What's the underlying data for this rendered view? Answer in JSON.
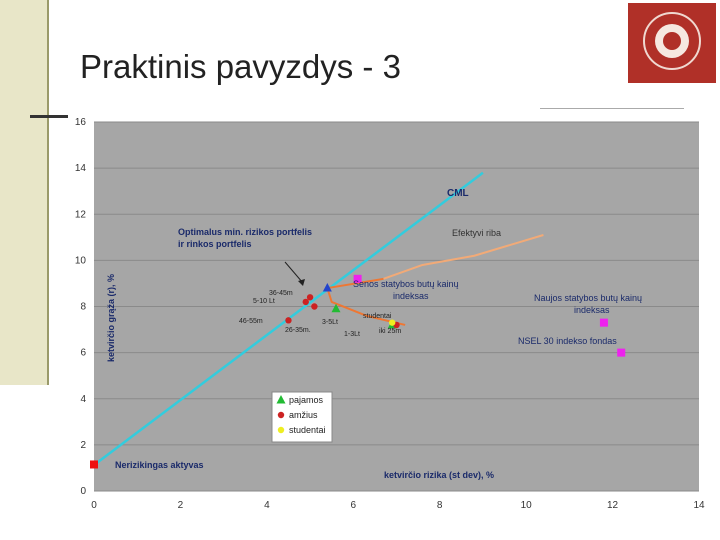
{
  "slide": {
    "title": "Praktinis pavyzdys - 3"
  },
  "chart_data": {
    "type": "scatter",
    "xlabel": "ketvirčio rizika (st dev), %",
    "ylabel": "ketvirčio grąža (r), %",
    "xlim": [
      0,
      14
    ],
    "ylim": [
      0,
      16
    ],
    "xticks": [
      "0",
      "2",
      "4",
      "6",
      "8",
      "10",
      "12",
      "14"
    ],
    "yticks": [
      "0",
      "2",
      "4",
      "6",
      "8",
      "10",
      "12",
      "14",
      "16"
    ],
    "grid": true,
    "legend_position": "bottom-left",
    "legend": [
      {
        "label": "pajamos",
        "marker": "triangle",
        "color": "#22bb33"
      },
      {
        "label": "amžius",
        "marker": "circle",
        "color": "#cc2222"
      },
      {
        "label": "studentai",
        "marker": "circle",
        "color": "#eeee22"
      }
    ],
    "lines": [
      {
        "name": "CML",
        "color": "#33ccdd",
        "points": [
          [
            0.05,
            1.2
          ],
          [
            9.0,
            13.8
          ]
        ]
      },
      {
        "name": "Efektyvi riba",
        "color": "#ee7733",
        "points": [
          [
            6.7,
            9.2
          ],
          [
            5.4,
            8.8
          ],
          [
            5.5,
            8.2
          ],
          [
            6.3,
            7.6
          ],
          [
            7.2,
            7.2
          ]
        ]
      },
      {
        "name": "Efektyvi riba (tęsinys)",
        "color": "#f2aa77",
        "points": [
          [
            6.7,
            9.2
          ],
          [
            7.6,
            9.8
          ],
          [
            8.8,
            10.2
          ],
          [
            10.4,
            11.1
          ]
        ]
      }
    ],
    "points": [
      {
        "label": "Nerizikingas aktyvas",
        "x": 0.0,
        "y": 1.15,
        "color": "#ee1111",
        "marker": "square"
      },
      {
        "label": "Senos statybos butų kainų indeksas",
        "x": 6.1,
        "y": 9.2,
        "color": "#ee22ee",
        "marker": "square"
      },
      {
        "label": "Naujos statybos butų kainų indeksas",
        "x": 11.8,
        "y": 7.3,
        "color": "#ee22ee",
        "marker": "square"
      },
      {
        "label": "NSEL 30 indekso fondas",
        "x": 12.2,
        "y": 6.0,
        "color": "#ee22ee",
        "marker": "square"
      },
      {
        "label": "Optimalus portfelis",
        "x": 5.4,
        "y": 8.8,
        "color": "#2244cc",
        "marker": "triangle"
      },
      {
        "label": "3-5Lt",
        "x": 5.6,
        "y": 7.9,
        "color": "#22bb33",
        "marker": "triangle"
      },
      {
        "label": "1-3Lt",
        "x": 6.9,
        "y": 7.2,
        "color": "#22bb33",
        "marker": "triangle"
      },
      {
        "label": "36-45m",
        "x": 5.0,
        "y": 8.4,
        "color": "#cc2222",
        "marker": "circle"
      },
      {
        "label": "5-10 Lt",
        "x": 4.9,
        "y": 8.2,
        "color": "#cc2222",
        "marker": "circle"
      },
      {
        "label": "46-55m",
        "x": 4.5,
        "y": 7.4,
        "color": "#cc2222",
        "marker": "circle"
      },
      {
        "label": "26-35m",
        "x": 5.1,
        "y": 8.0,
        "color": "#cc2222",
        "marker": "circle"
      },
      {
        "label": "iki 25m",
        "x": 7.0,
        "y": 7.2,
        "color": "#cc2222",
        "marker": "circle"
      },
      {
        "label": "studentai",
        "x": 6.9,
        "y": 7.3,
        "color": "#eeee22",
        "marker": "circle"
      }
    ],
    "annotations": [
      {
        "text": "CML"
      },
      {
        "text": "Efektyvi riba"
      },
      {
        "text": "Optimalus min. rizikos portfelis ir rinkos portfelis"
      },
      {
        "text": "Senos statybos butų kainų indeksas"
      },
      {
        "text": "Naujos statybos butų kainų indeksas"
      },
      {
        "text": "NSEL 30 indekso fondas"
      },
      {
        "text": "Nerizikingas aktyvas"
      },
      {
        "text": "36-45m"
      },
      {
        "text": "5-10 Lt"
      },
      {
        "text": "46-55m"
      },
      {
        "text": "26-35m."
      },
      {
        "text": "3-5Lt"
      },
      {
        "text": "1-3Lt"
      },
      {
        "text": "studentai"
      },
      {
        "text": "iki 25m"
      }
    ]
  }
}
